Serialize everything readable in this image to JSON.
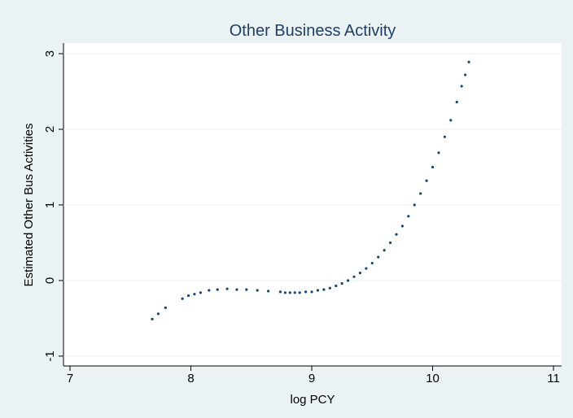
{
  "chart_data": {
    "type": "scatter",
    "title": "Other Business Activity",
    "x_label": "log PCY",
    "y_label": "Estimated Other Bus Activities",
    "color": "#1a476f",
    "x": [
      7.68,
      7.73,
      7.79,
      7.93,
      7.98,
      8.03,
      8.08,
      8.15,
      8.22,
      8.3,
      8.38,
      8.46,
      8.55,
      8.64,
      8.74,
      8.78,
      8.82,
      8.86,
      8.9,
      8.95,
      9.0,
      9.05,
      9.1,
      9.15,
      9.2,
      9.25,
      9.3,
      9.35,
      9.4,
      9.45,
      9.5,
      9.55,
      9.6,
      9.65,
      9.7,
      9.75,
      9.8,
      9.85,
      9.9,
      9.95,
      10.0,
      10.05,
      10.1,
      10.15,
      10.2,
      10.24,
      10.27,
      10.3
    ],
    "values": [
      -0.51,
      -0.44,
      -0.36,
      -0.24,
      -0.2,
      -0.18,
      -0.16,
      -0.13,
      -0.12,
      -0.11,
      -0.12,
      -0.12,
      -0.13,
      -0.14,
      -0.15,
      -0.16,
      -0.16,
      -0.16,
      -0.16,
      -0.15,
      -0.15,
      -0.13,
      -0.12,
      -0.1,
      -0.07,
      -0.04,
      0.0,
      0.05,
      0.1,
      0.16,
      0.23,
      0.31,
      0.4,
      0.5,
      0.61,
      0.72,
      0.85,
      1.0,
      1.15,
      1.32,
      1.5,
      1.69,
      1.9,
      2.12,
      2.36,
      2.57,
      2.72,
      2.89
    ],
    "xlim": [
      6.946,
      11.067
    ],
    "xticks": [
      7,
      8,
      9,
      10,
      11
    ],
    "ylim": [
      -1.13,
      3.14
    ],
    "yticks": [
      -1,
      0,
      1,
      2,
      3
    ],
    "grid": true
  }
}
